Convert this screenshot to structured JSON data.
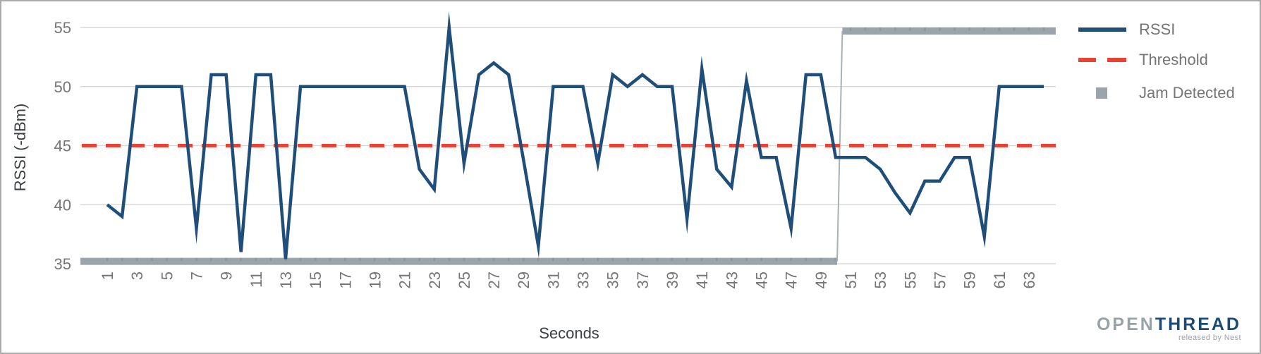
{
  "legend": {
    "items": [
      {
        "label": "RSSI",
        "swatch": "line",
        "color": "#1F4E79"
      },
      {
        "label": "Threshold",
        "swatch": "dashes",
        "color": "#E84335"
      },
      {
        "label": "Jam Detected",
        "swatch": "square",
        "color": "#9AA4AB"
      }
    ]
  },
  "branding": {
    "brand_open": "OPEN",
    "brand_thread": "THREAD",
    "brand_tagline": "released by Nest"
  },
  "chart_data": {
    "type": "line",
    "xlabel": "Seconds",
    "ylabel": "RSSI (-dBm)",
    "ylim": [
      35,
      55
    ],
    "y_ticks": [
      55,
      50,
      45,
      40,
      35
    ],
    "x_tick_labels": [
      "1",
      "3",
      "5",
      "7",
      "9",
      "11",
      "13",
      "15",
      "17",
      "19",
      "21",
      "23",
      "25",
      "27",
      "29",
      "31",
      "33",
      "35",
      "37",
      "39",
      "41",
      "43",
      "45",
      "47",
      "49",
      "51",
      "53",
      "55",
      "57",
      "59",
      "61",
      "63"
    ],
    "grid": "horizontal",
    "legend_position": "right",
    "colors": {
      "rssi": "#1F4E79",
      "threshold": "#E84335",
      "jam": "#9AA4AB",
      "gridline": "#D9D9D9",
      "tick_text": "#757575",
      "axis_title_text": "#3C4043"
    },
    "series": [
      {
        "name": "RSSI",
        "type": "line",
        "color": "#1F4E79",
        "x_start": 1,
        "values": [
          40,
          39,
          50,
          50,
          50,
          50,
          38,
          51,
          51,
          36,
          51,
          51,
          35.4,
          50,
          50,
          50,
          50,
          50,
          50,
          50,
          50,
          43,
          41.3,
          55,
          43.5,
          51,
          52,
          51,
          43.8,
          36.5,
          50,
          50,
          50,
          43.5,
          51,
          50,
          51,
          50,
          50,
          38.8,
          51.5,
          43,
          41.5,
          50.5,
          44,
          44,
          38,
          51,
          51,
          44,
          44,
          44,
          43,
          41,
          39.3,
          42,
          42,
          44,
          44,
          37.3,
          50,
          50,
          50,
          50
        ]
      },
      {
        "name": "Threshold",
        "type": "dashed-line",
        "color": "#E84335",
        "value": 45
      },
      {
        "name": "Jam Detected",
        "type": "step-band",
        "color": "#9AA4AB",
        "segments": [
          {
            "x_start": -0.8,
            "x_end": 50.1,
            "level": 35.2
          },
          {
            "x_start": 50.45,
            "x_end": 64.8,
            "level": 54.7
          }
        ]
      }
    ]
  }
}
